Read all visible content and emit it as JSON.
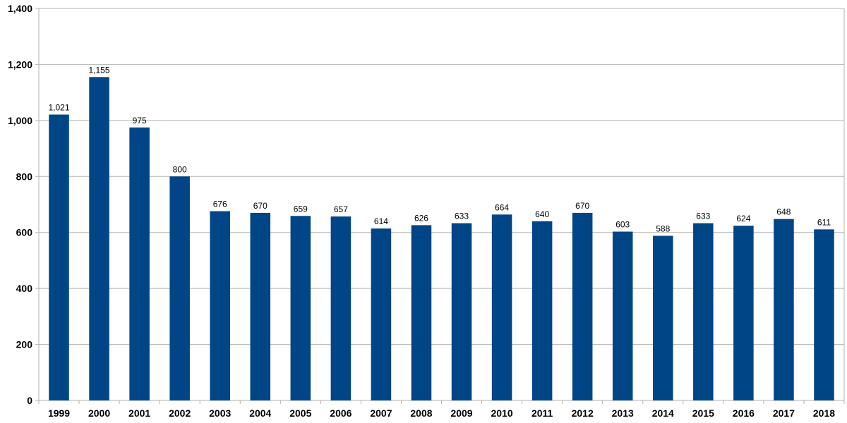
{
  "chart_data": {
    "type": "bar",
    "title": "",
    "xlabel": "",
    "ylabel": "",
    "categories": [
      "1999",
      "2000",
      "2001",
      "2002",
      "2003",
      "2004",
      "2005",
      "2006",
      "2007",
      "2008",
      "2009",
      "2010",
      "2011",
      "2012",
      "2013",
      "2014",
      "2015",
      "2016",
      "2017",
      "2018"
    ],
    "values": [
      1021,
      1155,
      975,
      800,
      676,
      670,
      659,
      657,
      614,
      626,
      633,
      664,
      640,
      670,
      603,
      588,
      633,
      624,
      648,
      611
    ],
    "data_labels": [
      "1,021",
      "1,155",
      "975",
      "800",
      "676",
      "670",
      "659",
      "657",
      "614",
      "626",
      "633",
      "664",
      "640",
      "670",
      "603",
      "588",
      "633",
      "624",
      "648",
      "611"
    ],
    "ylim": [
      0,
      1400
    ],
    "yticks": [
      0,
      200,
      400,
      600,
      800,
      1000,
      1200,
      1400
    ],
    "ytick_labels": [
      "0",
      "200",
      "400",
      "600",
      "800",
      "1,000",
      "1,200",
      "1,400"
    ],
    "grid": true,
    "legend": "none",
    "colors": {
      "bar": "#004586",
      "grid": "#b3b3b3",
      "axis": "#b3b3b3"
    }
  }
}
